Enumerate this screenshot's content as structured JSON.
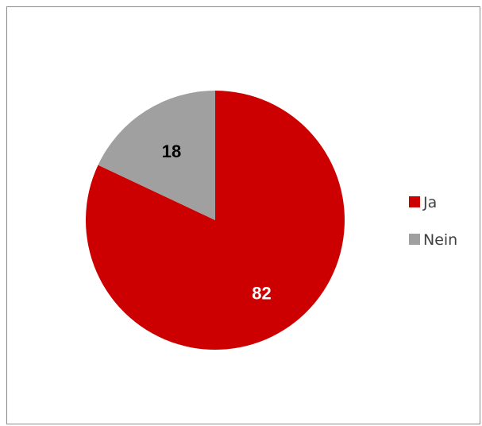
{
  "chart_data": {
    "type": "pie",
    "title": "",
    "categories": [
      "Ja",
      "Nein"
    ],
    "values": [
      82,
      18
    ],
    "colors": [
      "#cc0000",
      "#a0a0a0"
    ],
    "data_labels": [
      "82",
      "18"
    ],
    "label_colors": [
      "#ffffff",
      "#000000"
    ],
    "legend": {
      "placement": "right",
      "entries": [
        "Ja",
        "Nein"
      ]
    }
  }
}
